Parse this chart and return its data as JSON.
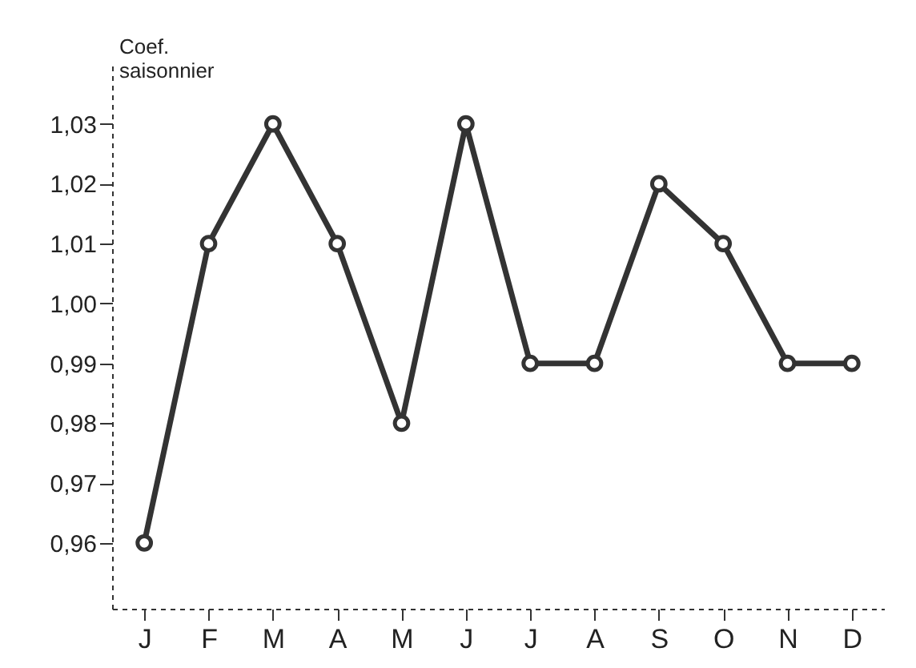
{
  "chart_data": {
    "type": "line",
    "ylabel": "Coef. saisonnier",
    "categories": [
      "J",
      "F",
      "M",
      "A",
      "M",
      "J",
      "J",
      "A",
      "S",
      "O",
      "N",
      "D"
    ],
    "series": [
      {
        "color": "#333333",
        "values": [
          0.96,
          1.01,
          1.03,
          1.01,
          0.98,
          1.03,
          0.99,
          0.99,
          1.02,
          1.01,
          0.99,
          0.99
        ]
      }
    ],
    "ylim": [
      0.949,
      1.04
    ],
    "yticks": [
      {
        "value": 0.96,
        "label": "0,96"
      },
      {
        "value": 0.97,
        "label": "0,97"
      },
      {
        "value": 0.98,
        "label": "0,98"
      },
      {
        "value": 0.99,
        "label": "0,99"
      },
      {
        "value": 1.0,
        "label": "1,00"
      },
      {
        "value": 1.01,
        "label": "1,01"
      },
      {
        "value": 1.02,
        "label": "1,02"
      },
      {
        "value": 1.03,
        "label": "1,03"
      }
    ],
    "grid": false,
    "legend": false,
    "marker": "circle",
    "line_style": "solid"
  }
}
